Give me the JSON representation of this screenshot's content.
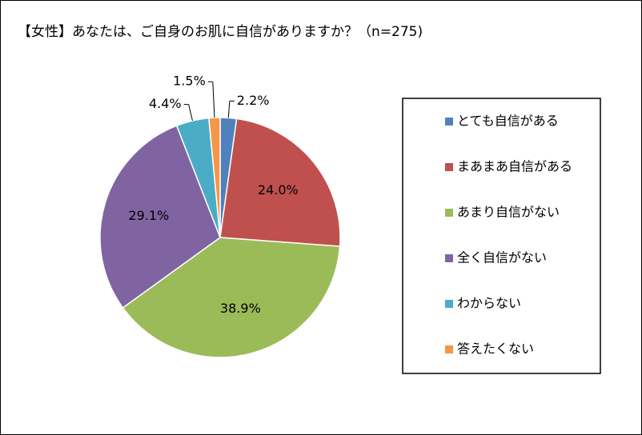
{
  "chart_data": {
    "type": "pie",
    "title": "【女性】あなたは、ご自身のお肌に自信がありますか？（n=275)",
    "categories": [
      "とても自信がある",
      "まあまあ自信がある",
      "あまり自信がない",
      "全く自信がない",
      "わからない",
      "答えたくない"
    ],
    "values": [
      2.2,
      24.0,
      38.9,
      29.1,
      4.4,
      1.5
    ],
    "value_labels": [
      "2.2%",
      "24.0%",
      "38.9%",
      "29.1%",
      "4.4%",
      "1.5%"
    ],
    "colors": [
      "#4f81bd",
      "#c0504d",
      "#9bbb59",
      "#8064a2",
      "#4bacc6",
      "#f79646"
    ],
    "legend": "right"
  }
}
